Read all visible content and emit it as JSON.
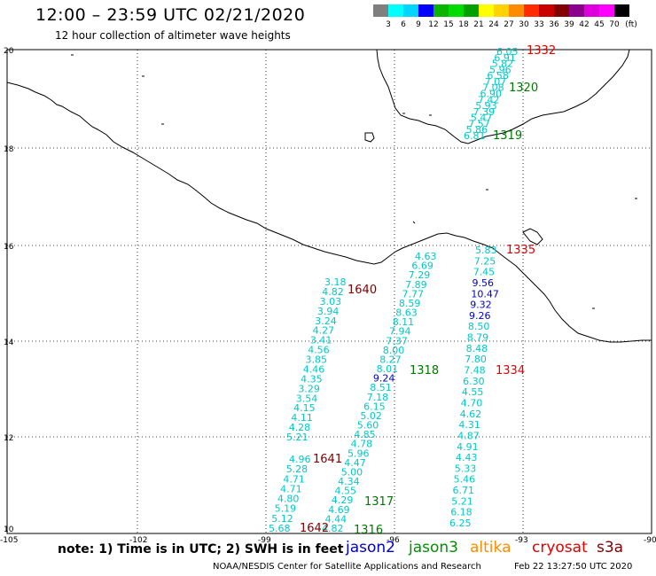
{
  "title": "12:00 – 23:59 UTC 02/21/2020",
  "subtitle": "12 hour collection of altimeter wave heights",
  "colorbar": {
    "unit": "(ft)",
    "labels": [
      "3",
      "6",
      "9",
      "12",
      "15",
      "18",
      "21",
      "24",
      "27",
      "30",
      "33",
      "36",
      "39",
      "42",
      "45",
      "70"
    ],
    "colors": [
      "#7f7f7f",
      "#00ffff",
      "#00d4ff",
      "#0000ff",
      "#0ab400",
      "#00dc00",
      "#00a000",
      "#ffff00",
      "#ffd200",
      "#ff8c00",
      "#ff2a00",
      "#c80000",
      "#820000",
      "#8c008c",
      "#dc00dc",
      "#ff00ff",
      "#000000"
    ]
  },
  "axes": {
    "lon_labels": [
      "-105",
      "-102",
      "-99",
      "-96",
      "-93",
      "-90"
    ],
    "lat_labels": [
      "20",
      "18",
      "16",
      "14",
      "12",
      "10"
    ]
  },
  "colors": {
    "cyan": "#00c8c8",
    "blue": "#0000cc",
    "green": "#007800",
    "red": "#e00000",
    "darkred": "#800000"
  },
  "tracks": [
    {
      "id": "t1332",
      "values": [
        "6.05",
        "6.91",
        "5.82",
        "5.96",
        "6.58",
        "7.07",
        "7.08",
        "6.90",
        "7.42",
        "5.93",
        "7.39",
        "5.47",
        "7.57",
        "5.86",
        "6.81"
      ]
    },
    {
      "id": "t1640",
      "values": [
        "3.18",
        "4.82",
        "3.03",
        "3.94",
        "3.24",
        "4.27",
        "3.41",
        "4.56",
        "3.85",
        "4.46",
        "4.35",
        "3.29",
        "3.54",
        "4.15",
        "4.11",
        "4.28",
        "5.21"
      ]
    },
    {
      "id": "t1641",
      "values": [
        "4.96",
        "5.28",
        "4.71",
        "4.71",
        "4.80",
        "5.19",
        "5.12",
        "5.68"
      ]
    },
    {
      "id": "t1318",
      "values": [
        "4.63",
        "6.69",
        "7.29",
        "7.89",
        "7.77",
        "8.59",
        "8.63",
        "8.11",
        "7.94",
        "7.37",
        "8.00",
        "8.27",
        "8.01",
        "9.24",
        "8.51",
        "7.18",
        "6.15",
        "5.02",
        "5.60",
        "4.85",
        "4.78",
        "5.96",
        "4.47",
        "5.00",
        "4.34",
        "4.55",
        "4.29",
        "4.69",
        "4.44",
        "4.82"
      ]
    },
    {
      "id": "t1334",
      "values": [
        "5.83",
        "7.25",
        "7.45",
        "9.56",
        "10.47",
        "9.32",
        "9.26",
        "8.50",
        "8.79",
        "8.48",
        "7.80",
        "7.48",
        "6.30",
        "4.55",
        "4.70",
        "4.62",
        "4.31",
        "4.87",
        "4.91",
        "4.43",
        "5.33",
        "5.46",
        "6.71",
        "5.21",
        "6.18",
        "6.25"
      ]
    }
  ],
  "time_labels": [
    "1332",
    "1320",
    "1319",
    "1335",
    "1640",
    "1318",
    "1334",
    "1641",
    "1317",
    "1642",
    "1316"
  ],
  "footer": {
    "note": "note: 1) Time is in UTC; 2) SWH is in feet",
    "satellites": [
      {
        "name": "jason2",
        "color": "#0000cc"
      },
      {
        "name": "jason3",
        "color": "#009000"
      },
      {
        "name": "altika",
        "color": "#ff8c00"
      },
      {
        "name": "cryosat",
        "color": "#e00000"
      },
      {
        "name": "s3a",
        "color": "#800000"
      }
    ],
    "credit": "NOAA/NESDIS Center for Satellite Applications and Research",
    "timestamp": "Feb 22 13:27:50 UTC 2020"
  }
}
